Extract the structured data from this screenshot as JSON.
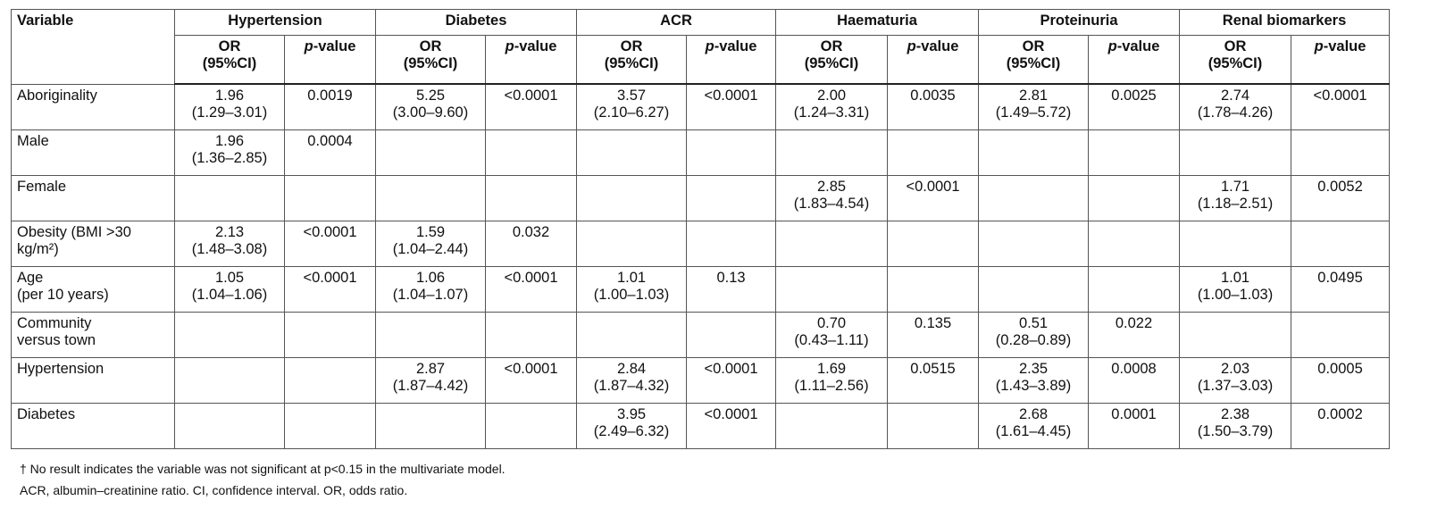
{
  "table": {
    "header": {
      "variable": "Variable",
      "groups": [
        "Hypertension",
        "Diabetes",
        "ACR",
        "Haematuria",
        "Proteinuria",
        "Renal biomarkers"
      ],
      "or_label": "OR\n(95%CI)",
      "p_label": "p-value"
    },
    "rows": [
      {
        "variable": "Aboriginality",
        "cells": [
          {
            "or": "1.96",
            "ci": "(1.29–3.01)"
          },
          "0.0019",
          {
            "or": "5.25",
            "ci": "(3.00–9.60)"
          },
          "<0.0001",
          {
            "or": "3.57",
            "ci": "(2.10–6.27)"
          },
          "<0.0001",
          {
            "or": "2.00",
            "ci": "(1.24–3.31)"
          },
          "0.0035",
          {
            "or": "2.81",
            "ci": "(1.49–5.72)"
          },
          "0.0025",
          {
            "or": "2.74",
            "ci": "(1.78–4.26)"
          },
          "<0.0001"
        ]
      },
      {
        "variable": "Male",
        "cells": [
          {
            "or": "1.96",
            "ci": "(1.36–2.85)"
          },
          "0.0004",
          null,
          null,
          null,
          null,
          null,
          null,
          null,
          null,
          null,
          null
        ]
      },
      {
        "variable": "Female",
        "cells": [
          null,
          null,
          null,
          null,
          null,
          null,
          {
            "or": "2.85",
            "ci": "(1.83–4.54)"
          },
          "<0.0001",
          null,
          null,
          {
            "or": "1.71",
            "ci": "(1.18–2.51)"
          },
          "0.0052"
        ]
      },
      {
        "variable": "Obesity (BMI >30\nkg/m²)",
        "cells": [
          {
            "or": "2.13",
            "ci": "(1.48–3.08)"
          },
          "<0.0001",
          {
            "or": "1.59",
            "ci": "(1.04–2.44)"
          },
          "0.032",
          null,
          null,
          null,
          null,
          null,
          null,
          null,
          null
        ]
      },
      {
        "variable": "Age\n(per 10 years)",
        "cells": [
          {
            "or": "1.05",
            "ci": "(1.04–1.06)"
          },
          "<0.0001",
          {
            "or": "1.06",
            "ci": "(1.04–1.07)"
          },
          "<0.0001",
          {
            "or": "1.01",
            "ci": "(1.00–1.03)"
          },
          "0.13",
          null,
          null,
          null,
          null,
          {
            "or": "1.01",
            "ci": "(1.00–1.03)"
          },
          "0.0495"
        ]
      },
      {
        "variable": "Community\nversus town",
        "cells": [
          null,
          null,
          null,
          null,
          null,
          null,
          {
            "or": "0.70",
            "ci": "(0.43–1.11)"
          },
          "0.135",
          {
            "or": "0.51",
            "ci": "(0.28–0.89)"
          },
          "0.022",
          null,
          null
        ]
      },
      {
        "variable": "Hypertension",
        "cells": [
          null,
          null,
          {
            "or": "2.87",
            "ci": "(1.87–4.42)"
          },
          "<0.0001",
          {
            "or": "2.84",
            "ci": "(1.87–4.32)"
          },
          "<0.0001",
          {
            "or": "1.69",
            "ci": "(1.11–2.56)"
          },
          "0.0515",
          {
            "or": "2.35",
            "ci": "(1.43–3.89)"
          },
          "0.0008",
          {
            "or": "2.03",
            "ci": "(1.37–3.03)"
          },
          "0.0005"
        ]
      },
      {
        "variable": "Diabetes",
        "cells": [
          null,
          null,
          null,
          null,
          {
            "or": "3.95",
            "ci": "(2.49–6.32)"
          },
          "<0.0001",
          null,
          null,
          {
            "or": "2.68",
            "ci": "(1.61–4.45)"
          },
          "0.0001",
          {
            "or": "2.38",
            "ci": "(1.50–3.79)"
          },
          "0.0002"
        ]
      }
    ]
  },
  "footnotes": [
    "† No result indicates the variable was not significant at p<0.15 in the multivariate model.",
    "ACR, albumin–creatinine ratio. CI, confidence interval. OR, odds ratio."
  ]
}
